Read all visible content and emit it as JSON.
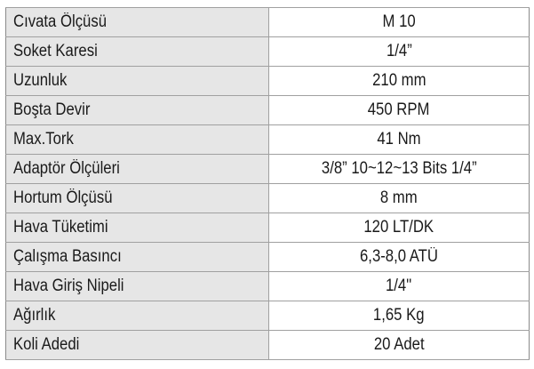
{
  "table": {
    "rows": [
      [
        "Cıvata Ölçüsü",
        "M 10"
      ],
      [
        "Soket Karesi",
        "1/4”"
      ],
      [
        "Uzunluk",
        "210 mm"
      ],
      [
        "Boşta Devir",
        "450 RPM"
      ],
      [
        "Max.Tork",
        "41 Nm"
      ],
      [
        "Adaptör Ölçüleri",
        "3/8” 10~12~13 Bits 1/4”"
      ],
      [
        "Hortum Ölçüsü",
        "8 mm"
      ],
      [
        "Hava Tüketimi",
        "120 LT/DK"
      ],
      [
        "Çalışma Basıncı",
        "6,3-8,0 ATÜ"
      ],
      [
        "Hava Giriş Nipeli",
        "1/4\""
      ],
      [
        "Ağırlık",
        "1,65 Kg"
      ],
      [
        "Koli Adedi",
        "20 Adet"
      ]
    ]
  }
}
